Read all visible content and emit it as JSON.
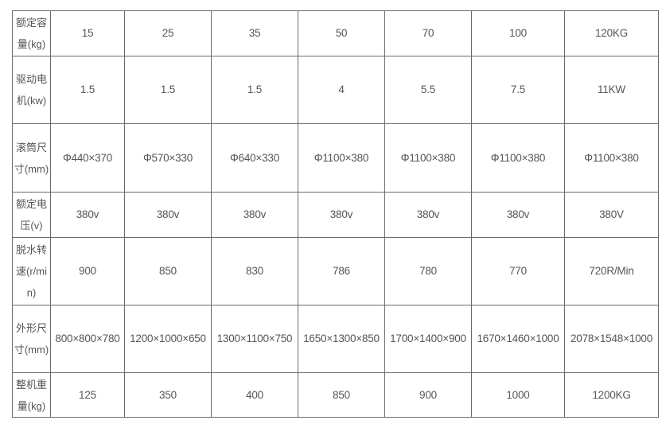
{
  "table": {
    "rows": [
      {
        "label": "额定容量(kg)",
        "values": [
          "15",
          "25",
          "35",
          "50",
          "70",
          "100",
          "120KG"
        ]
      },
      {
        "label": "驱动电机(kw)",
        "values": [
          "1.5",
          "1.5",
          "1.5",
          "4",
          "5.5",
          "7.5",
          "11KW"
        ]
      },
      {
        "label": "滚筒尺寸(mm)",
        "values": [
          "Φ440×370",
          "Φ570×330",
          "Φ640×330",
          "Φ1100×380",
          "Φ1100×380",
          "Φ1100×380",
          "Φ1100×380"
        ]
      },
      {
        "label": "额定电压(v)",
        "values": [
          "380v",
          "380v",
          "380v",
          "380v",
          "380v",
          "380v",
          "380V"
        ]
      },
      {
        "label": "脱水转速(r/min)",
        "values": [
          "900",
          "850",
          "830",
          "786",
          "780",
          "770",
          "720R/Min"
        ]
      },
      {
        "label": "外形尺寸(mm)",
        "values": [
          "800×800×780",
          "1200×1000×650",
          "1300×1100×750",
          "1650×1300×850",
          "1700×1400×900",
          "1670×1460×1000",
          "2078×1548×1000"
        ]
      },
      {
        "label": "整机重量(kg)",
        "values": [
          "125",
          "350",
          "400",
          "850",
          "900",
          "1000",
          "1200KG"
        ]
      }
    ]
  }
}
